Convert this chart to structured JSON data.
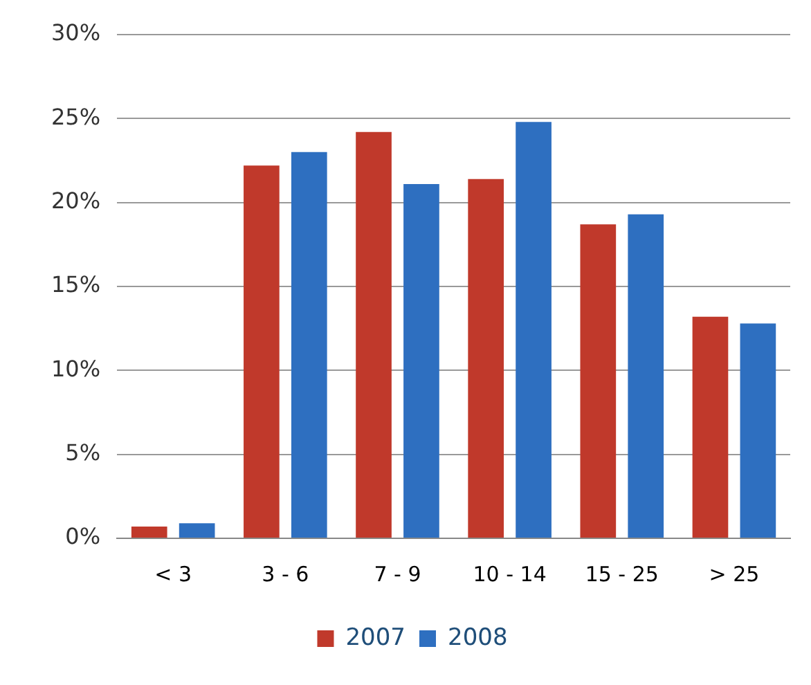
{
  "chart_data": {
    "type": "bar",
    "categories": [
      "< 3",
      "3 - 6",
      "7 - 9",
      "10 - 14",
      "15 - 25",
      "> 25"
    ],
    "series": [
      {
        "name": "2007",
        "color": "#c0392b",
        "values": [
          0.7,
          22.2,
          24.2,
          21.4,
          18.7,
          13.2
        ]
      },
      {
        "name": "2008",
        "color": "#2e6fc0",
        "values": [
          0.9,
          23.0,
          21.1,
          24.8,
          19.3,
          12.8
        ]
      }
    ],
    "ylim": [
      0,
      30
    ],
    "yticks": [
      {
        "value": 0,
        "label": "0%"
      },
      {
        "value": 5,
        "label": "5%"
      },
      {
        "value": 10,
        "label": "10%"
      },
      {
        "value": 15,
        "label": "15%"
      },
      {
        "value": 20,
        "label": "20%"
      },
      {
        "value": 25,
        "label": "25%"
      },
      {
        "value": 30,
        "label": "30%"
      }
    ],
    "grid": "y",
    "legend": "bottom"
  }
}
